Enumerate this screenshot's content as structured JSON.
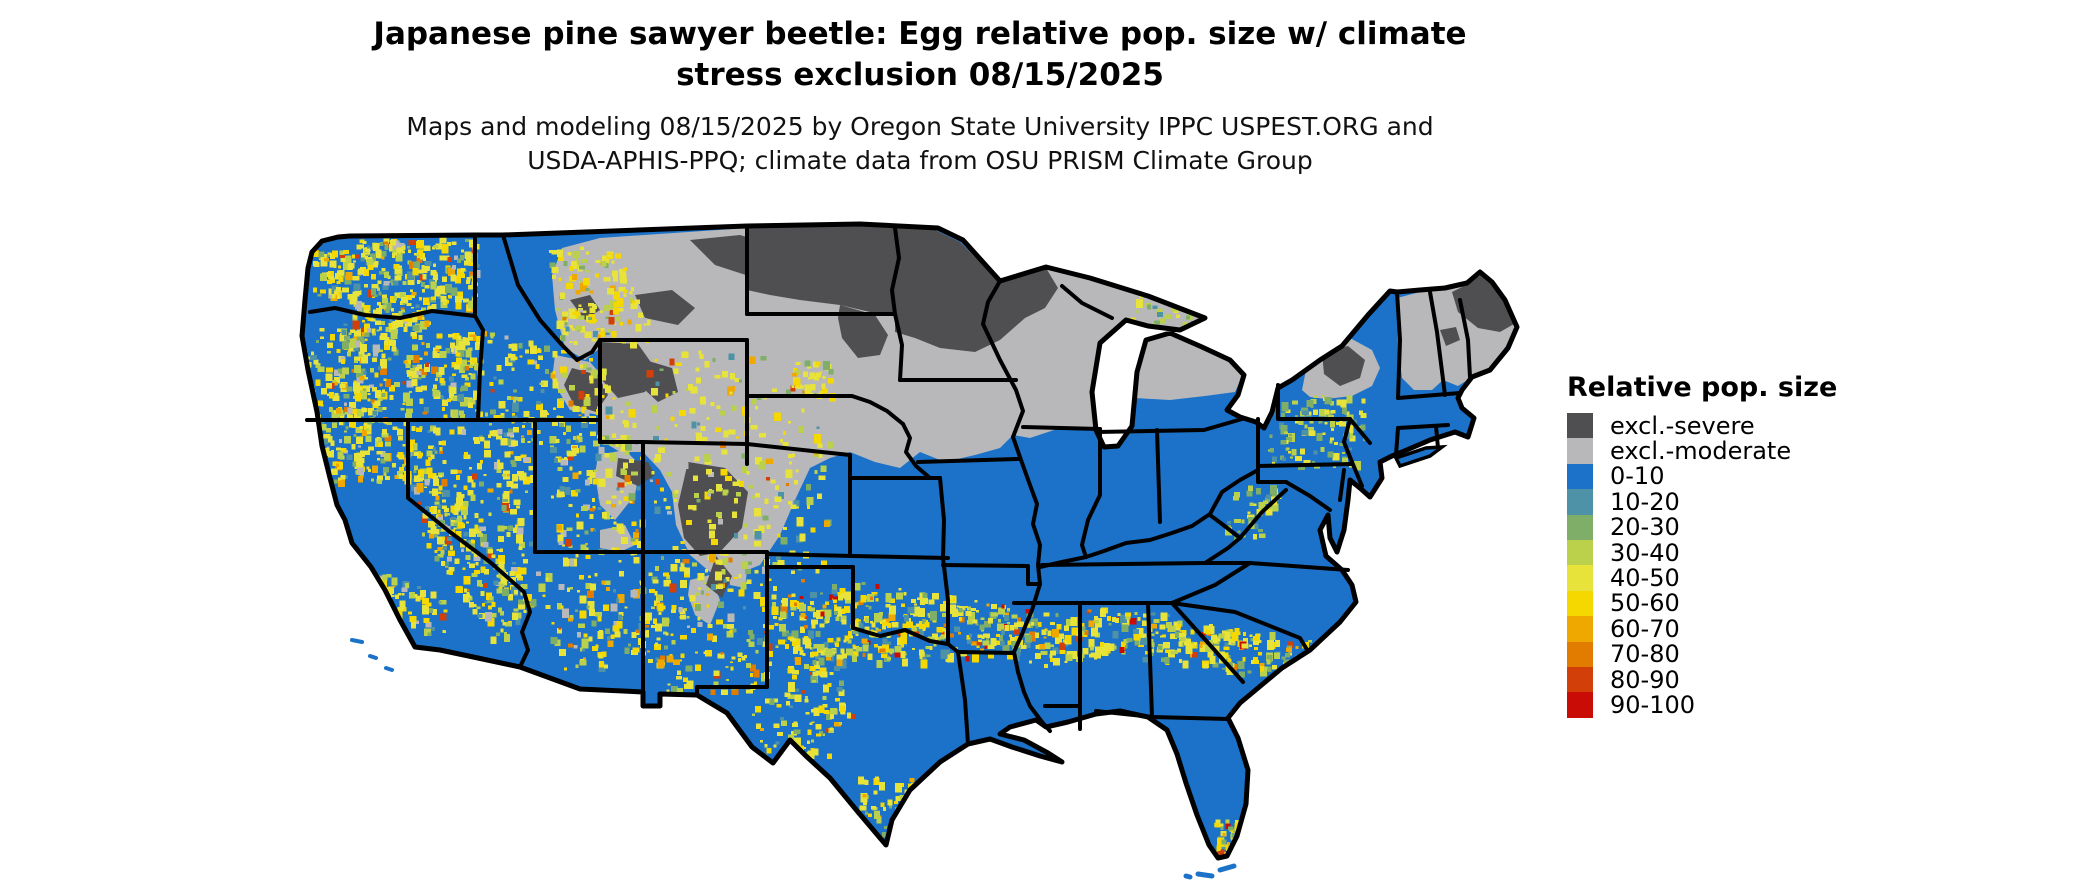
{
  "header": {
    "title_line1": "Japanese pine sawyer beetle: Egg relative pop. size w/ climate",
    "title_line2": "stress exclusion 08/15/2025",
    "subtitle_line1": "Maps and modeling 08/15/2025 by Oregon State University IPPC USPEST.ORG and",
    "subtitle_line2": "USDA-APHIS-PPQ; climate data from OSU PRISM Climate Group"
  },
  "legend": {
    "title": "Relative pop. size",
    "items": [
      {
        "key": "severe",
        "label": "excl.-severe",
        "color": "#4f4f51"
      },
      {
        "key": "moderate",
        "label": "excl.-moderate",
        "color": "#b8b8ba"
      },
      {
        "key": "c0_10",
        "label": "0-10",
        "color": "#1b72c8"
      },
      {
        "key": "c10_20",
        "label": "10-20",
        "color": "#4d92a6"
      },
      {
        "key": "c20_30",
        "label": "20-30",
        "color": "#7fae69"
      },
      {
        "key": "c30_40",
        "label": "30-40",
        "color": "#bbd14b"
      },
      {
        "key": "c40_50",
        "label": "40-50",
        "color": "#e8e33a"
      },
      {
        "key": "c50_60",
        "label": "50-60",
        "color": "#f4d800"
      },
      {
        "key": "c60_70",
        "label": "60-70",
        "color": "#eea800"
      },
      {
        "key": "c70_80",
        "label": "70-80",
        "color": "#e27c00"
      },
      {
        "key": "c80_90",
        "label": "80-90",
        "color": "#d33f08"
      },
      {
        "key": "c90_100",
        "label": "90-100",
        "color": "#c90d06"
      }
    ]
  },
  "map": {
    "description": "CONUS map of modeled egg relative population size; blue (0-10) dominates, exclusion grays across the northern tier and mountain West, yellow mottling in western mountains and a yellow band with orange-red speckles across the southern states",
    "background_color": "#ffffff",
    "land_base_class": "c0_10",
    "state_border_color": "#000000",
    "exclusion_zones": [
      "northern-plains-moderate",
      "upper-midwest-severe",
      "rockies-moderate",
      "colorado-severe-core",
      "yellowstone-severe",
      "new-england-moderate",
      "maine-severe",
      "adirondacks-severe"
    ],
    "hotspot_zones": [
      "cascades",
      "olympics",
      "sierra-nevada",
      "great-basin",
      "rockies-fringe",
      "southern-band",
      "south-texas",
      "florida-tip",
      "appalachia"
    ]
  }
}
